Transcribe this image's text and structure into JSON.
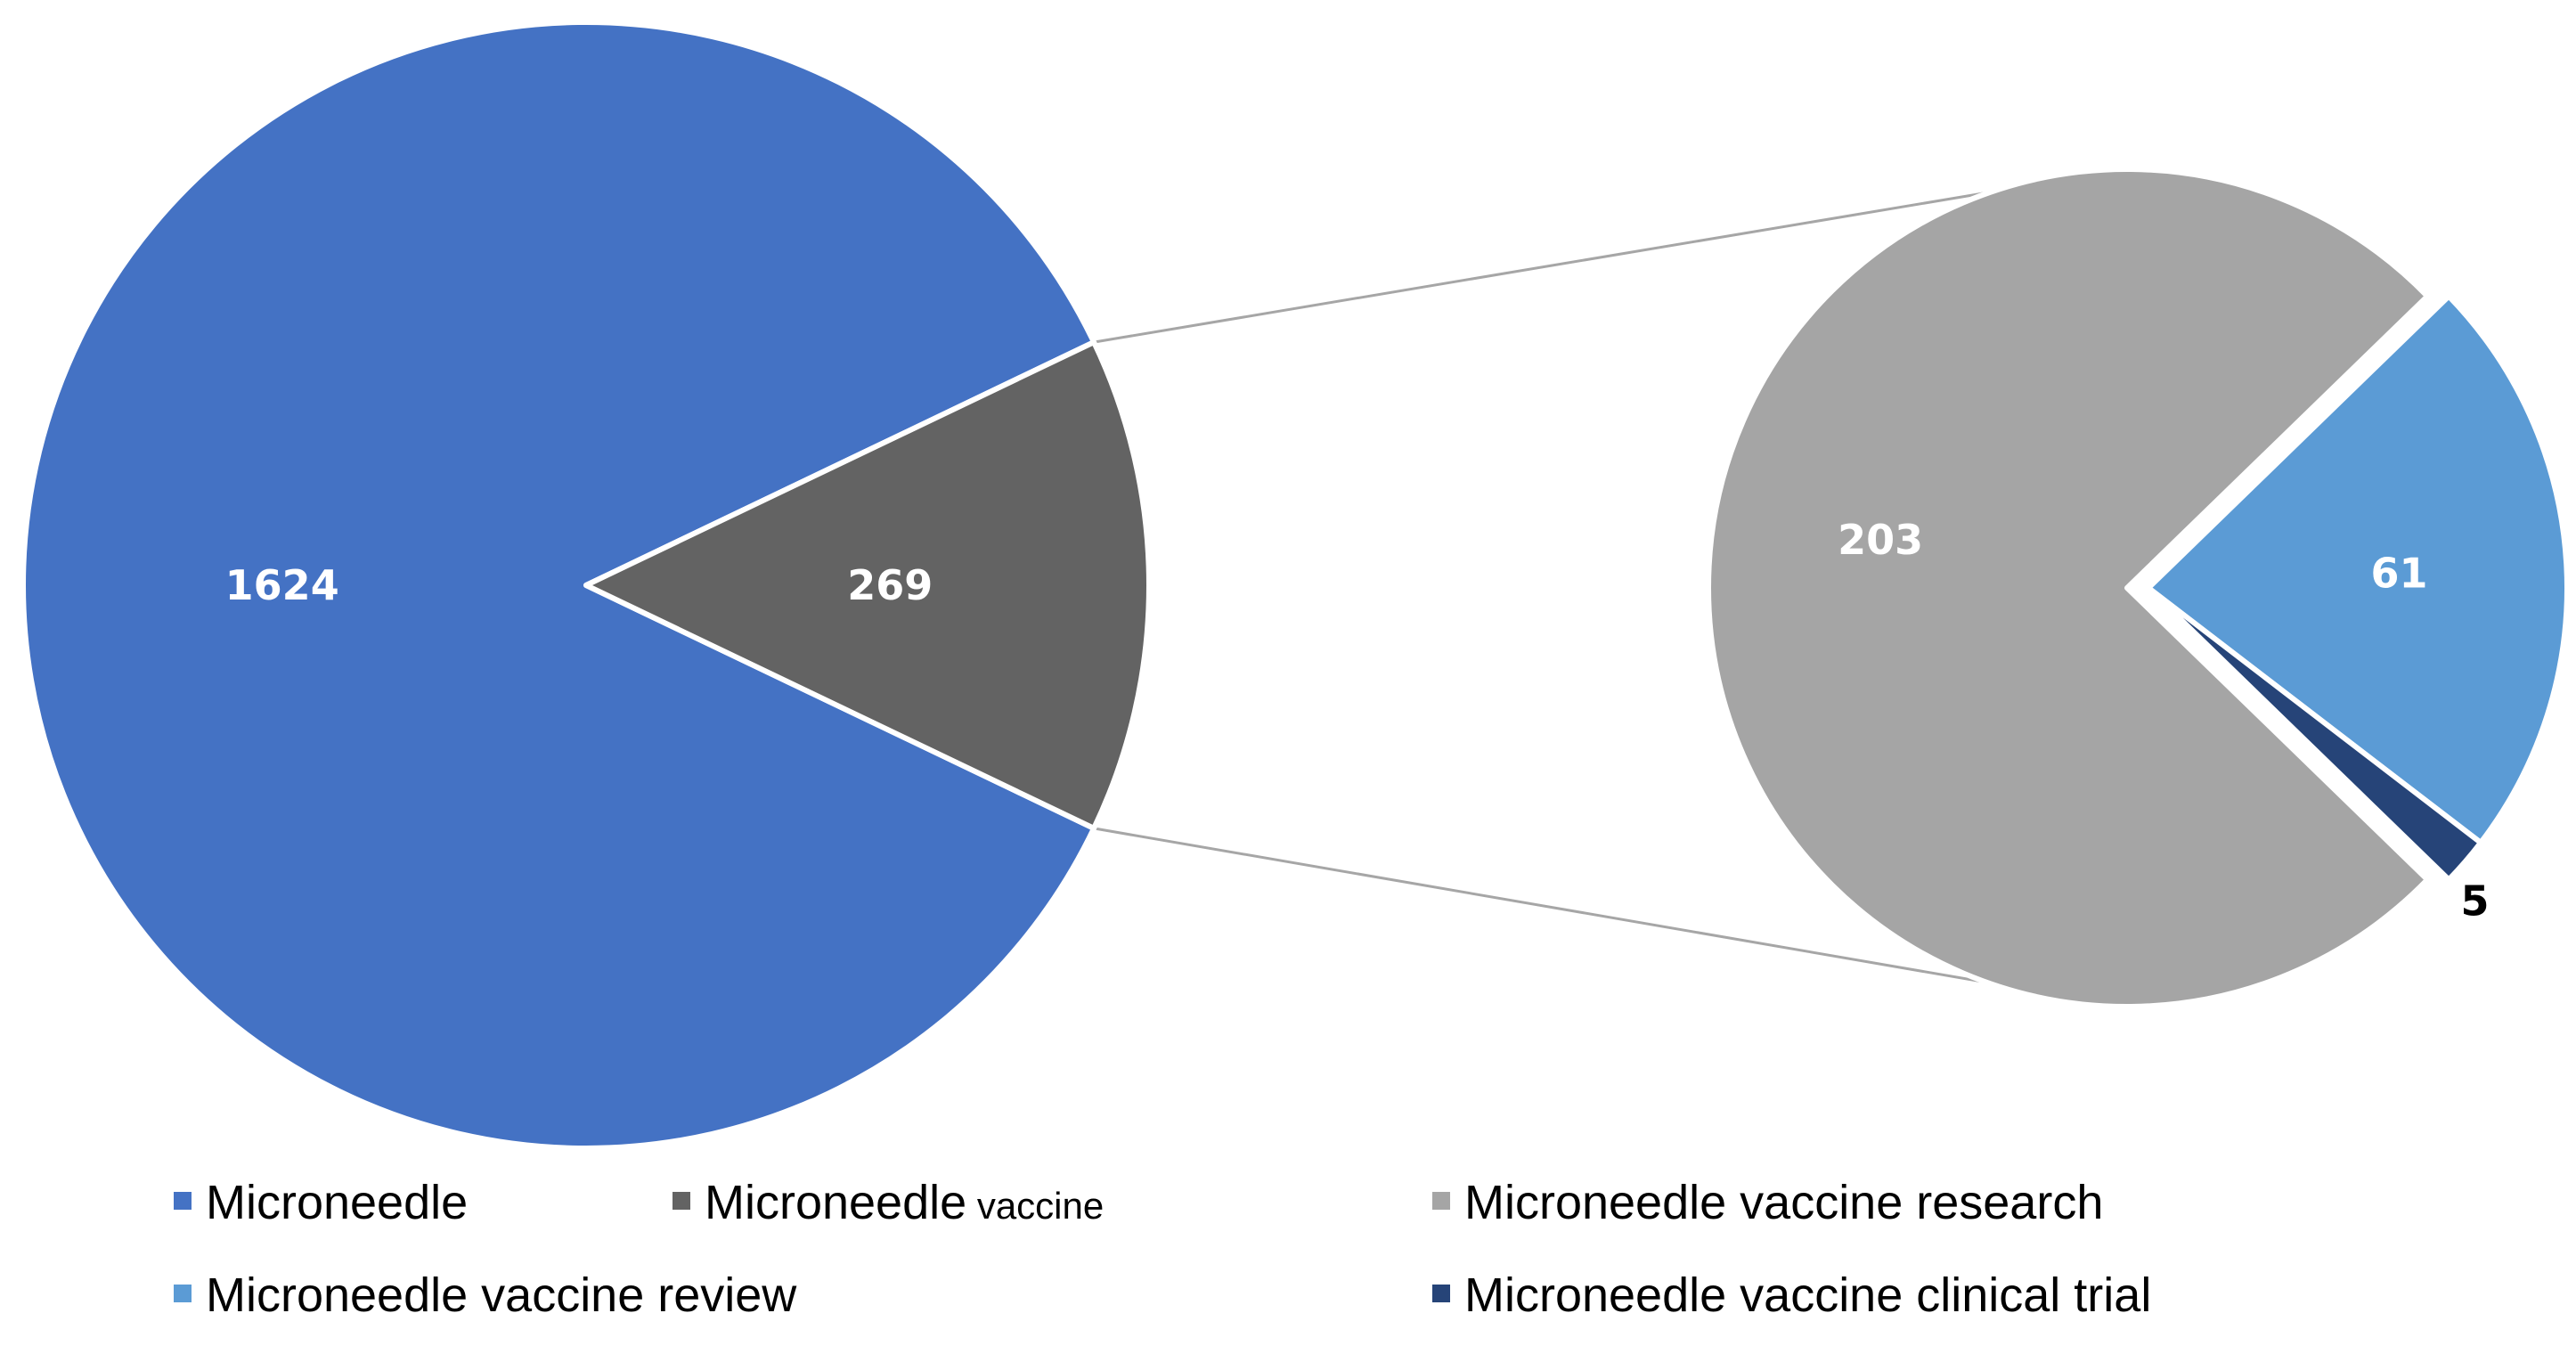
{
  "chart_data": {
    "type": "pie",
    "subtype": "pie-of-pie",
    "main_pie": {
      "slices": [
        {
          "name": "Microneedle",
          "value": 1624,
          "color": "#4472C4",
          "label_color": "#FFFFFF"
        },
        {
          "name": "Microneedle vaccine",
          "value": 269,
          "color": "#636363",
          "label_color": "#FFFFFF"
        }
      ]
    },
    "secondary_pie": {
      "expands": "Microneedle vaccine",
      "slices": [
        {
          "name": "Microneedle vaccine research",
          "value": 203,
          "color": "#A5A5A5",
          "label_color": "#FFFFFF",
          "exploded": false
        },
        {
          "name": "Microneedle vaccine review",
          "value": 61,
          "color": "#5B9BD5",
          "label_color": "#FFFFFF",
          "exploded": true
        },
        {
          "name": "Microneedle vaccine clinical trial",
          "value": 5,
          "color": "#264478",
          "label_color": "#000000",
          "exploded": true
        }
      ]
    },
    "legend": {
      "placement": "bottom",
      "entries": [
        {
          "label": "Microneedle",
          "color": "#4472C4"
        },
        {
          "label": "Microneedle",
          "suffix": "vaccine",
          "color": "#636363"
        },
        {
          "label": "Microneedle vaccine research",
          "color": "#A5A5A5"
        },
        {
          "label": "Microneedle vaccine review",
          "color": "#5B9BD5"
        },
        {
          "label": "Microneedle vaccine clinical trial",
          "color": "#264478"
        }
      ]
    },
    "connector_color": "#A6A6A6"
  }
}
